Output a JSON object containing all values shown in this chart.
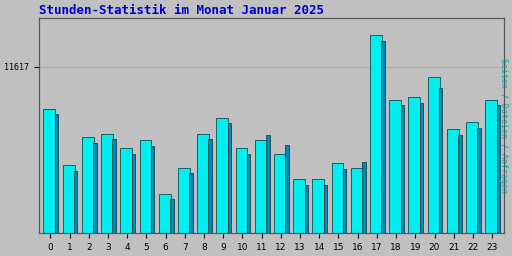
{
  "title": "Stunden-Statistik im Monat Januar 2025",
  "title_color": "#0000cc",
  "title_fontsize": 9,
  "ylabel_right": "Seiten / Dateien / Anfragen",
  "ylabel_right_color": "#00aaaa",
  "background_color": "#c0c0c0",
  "plot_bg_color": "#c0c0c0",
  "bar_color_cyan": "#00eeee",
  "bar_color_blue": "#0088bb",
  "bar_edge_color": "#003333",
  "categories": [
    0,
    1,
    2,
    3,
    4,
    5,
    6,
    7,
    8,
    9,
    10,
    11,
    12,
    13,
    14,
    15,
    16,
    17,
    18,
    19,
    20,
    21,
    22,
    23
  ],
  "values_cyan": [
    11580,
    11530,
    11555,
    11558,
    11545,
    11552,
    11505,
    11528,
    11558,
    11572,
    11545,
    11552,
    11540,
    11518,
    11518,
    11532,
    11528,
    11645,
    11588,
    11590,
    11608,
    11562,
    11568,
    11588
  ],
  "values_blue": [
    11575,
    11525,
    11550,
    11553,
    11540,
    11547,
    11500,
    11523,
    11553,
    11567,
    11540,
    11557,
    11548,
    11513,
    11513,
    11527,
    11533,
    11640,
    11583,
    11585,
    11598,
    11557,
    11563,
    11583
  ],
  "ytick_label": "11617",
  "ylim_min": 11470,
  "ylim_max": 11660,
  "bar_width": 0.72
}
